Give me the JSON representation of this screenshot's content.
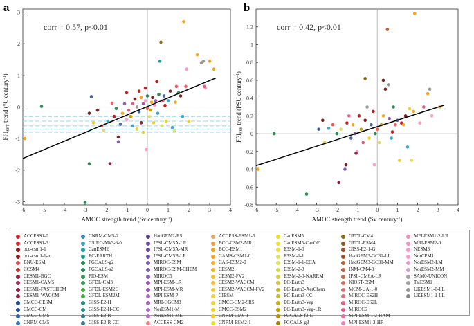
{
  "chart_data": [
    {
      "panel_label": "a",
      "type": "scatter",
      "annotation": "corr = 0.57, p<0.01",
      "xlabel": "AMOC strength trend (Sv century",
      "ylabel": "trend (°C century",
      "ylabel_sub": "SST",
      "xlim": [
        -6,
        4
      ],
      "ylim": [
        -3.1,
        3.1
      ],
      "xticks": [
        "-6",
        "-5",
        "-4",
        "-3",
        "-2",
        "-1",
        "0",
        "1",
        "2",
        "3",
        "4"
      ],
      "yticks": [
        "-3",
        "-2",
        "-1",
        "0",
        "1",
        "2",
        "3"
      ],
      "fit_line": [
        [
          -6,
          -1.63
        ],
        [
          3.3,
          0.92
        ]
      ],
      "bands": [
        -0.3,
        -0.45,
        -0.6,
        -0.7,
        -0.8
      ],
      "points": [
        [
          -5.9,
          -1.0,
          "#f5a623"
        ],
        [
          -5.1,
          0.02,
          "#2e8b57"
        ],
        [
          -3.0,
          -3.02,
          "#2e8b57"
        ],
        [
          -2.8,
          -1.8,
          "#2e8b57"
        ],
        [
          -2.7,
          0.33,
          "#4466aa"
        ],
        [
          -2.8,
          -0.2,
          "#7a2020"
        ],
        [
          -2.6,
          -0.5,
          "#f0d020"
        ],
        [
          -2.4,
          -0.1,
          "#7a2020"
        ],
        [
          -2.2,
          -0.6,
          "#f06060"
        ],
        [
          -2.1,
          -0.75,
          "#e0e060"
        ],
        [
          -1.9,
          -0.45,
          "#3aa7d0"
        ],
        [
          -1.8,
          -1.8,
          "#8b2244"
        ],
        [
          -1.7,
          0.12,
          "#f06060"
        ],
        [
          -1.6,
          -0.3,
          "#c02020"
        ],
        [
          -1.5,
          -0.05,
          "#2e8b57"
        ],
        [
          -1.4,
          -1.1,
          "#8060b0"
        ],
        [
          -1.4,
          -0.95,
          "#7a2020"
        ],
        [
          -1.3,
          -0.55,
          "#4466aa"
        ],
        [
          -1.2,
          -0.2,
          "#f5a623"
        ],
        [
          -1.1,
          0.1,
          "#9b59b6"
        ],
        [
          -1.0,
          -0.4,
          "#ff99cc"
        ],
        [
          -1.0,
          0.45,
          "#c02020"
        ],
        [
          -0.9,
          -0.1,
          "#e06080"
        ],
        [
          -0.8,
          -0.3,
          "#c8a000"
        ],
        [
          -0.7,
          0.1,
          "#e06080"
        ],
        [
          -0.7,
          -0.6,
          "#3aa7d0"
        ],
        [
          -0.6,
          0.25,
          "#7a2020"
        ],
        [
          -0.5,
          0.0,
          "#999999"
        ],
        [
          -0.5,
          -0.7,
          "#f0d020"
        ],
        [
          -0.4,
          0.5,
          "#c02020"
        ],
        [
          -0.4,
          -0.15,
          "#4466aa"
        ],
        [
          -0.3,
          0.3,
          "#f5a623"
        ],
        [
          -0.3,
          -0.5,
          "#8b2244"
        ],
        [
          -0.2,
          0.1,
          "#9b59b6"
        ],
        [
          -0.2,
          -0.8,
          "#f0d020"
        ],
        [
          -0.1,
          0.2,
          "#ff99cc"
        ],
        [
          -0.1,
          0.6,
          "#c02020"
        ],
        [
          -0.05,
          -1.35,
          "#ff99cc"
        ],
        [
          0.0,
          -0.05,
          "#f06060"
        ],
        [
          0.0,
          0.35,
          "#2e8b57"
        ],
        [
          0.1,
          -0.3,
          "#e0e060"
        ],
        [
          0.15,
          -0.1,
          "#c8a000"
        ],
        [
          0.2,
          0.15,
          "#f5a623"
        ],
        [
          0.25,
          0.3,
          "#7a2020"
        ],
        [
          0.3,
          -0.5,
          "#f0d020"
        ],
        [
          0.35,
          0.05,
          "#ff99cc"
        ],
        [
          0.4,
          0.2,
          "#9b59b6"
        ],
        [
          0.45,
          0.8,
          "#c02020"
        ],
        [
          0.5,
          -0.2,
          "#3aa7d0"
        ],
        [
          0.55,
          0.4,
          "#2e8b57"
        ],
        [
          0.6,
          1.45,
          "#20a0a0"
        ],
        [
          0.65,
          2.05,
          "#8b6914"
        ],
        [
          0.7,
          -0.6,
          "#e0e060"
        ],
        [
          0.75,
          0.2,
          "#f06060"
        ],
        [
          0.8,
          0.35,
          "#4466aa"
        ],
        [
          0.85,
          0.05,
          "#c02020"
        ],
        [
          0.9,
          -0.45,
          "#f0d020"
        ],
        [
          1.0,
          0.2,
          "#3aa7d0"
        ],
        [
          1.1,
          0.5,
          "#7a2020"
        ],
        [
          1.2,
          -0.65,
          "#3aa7d0"
        ],
        [
          1.3,
          -0.75,
          "#e0e060"
        ],
        [
          1.35,
          0.15,
          "#f5a623"
        ],
        [
          1.4,
          0.65,
          "#f06060"
        ],
        [
          1.5,
          0.45,
          "#2e8b57"
        ],
        [
          1.6,
          0.35,
          "#7a2020"
        ],
        [
          1.7,
          -0.3,
          "#3aa7d0"
        ],
        [
          1.75,
          2.7,
          "#f5a623"
        ],
        [
          1.9,
          1.2,
          "#ff99cc"
        ],
        [
          2.0,
          -0.45,
          "#f0d020"
        ],
        [
          2.4,
          1.65,
          "#f5a623"
        ],
        [
          2.6,
          1.4,
          "#999999"
        ],
        [
          2.7,
          1.45,
          "#999999"
        ],
        [
          2.8,
          0.6,
          "#ff99cc"
        ],
        [
          3.0,
          1.45,
          "#f5a623"
        ],
        [
          3.2,
          1.2,
          "#f5a623"
        ],
        [
          2.75,
          0.65,
          "#e06080"
        ],
        [
          1.85,
          0.65,
          "#f06060"
        ]
      ]
    },
    {
      "panel_label": "b",
      "type": "scatter",
      "annotation": "corr = 0.42, p<0.01",
      "xlabel": "AMOC strength trend (Sv century",
      "ylabel": "trend (PSU century",
      "ylabel_sub": "SSS",
      "xlim": [
        -6,
        4
      ],
      "ylim": [
        -0.8,
        1.4
      ],
      "xticks": [
        "-6",
        "-5",
        "-4",
        "-3",
        "-2",
        "-1",
        "0",
        "1",
        "2",
        "3",
        "4"
      ],
      "yticks": [
        "-0.8",
        "-0.6",
        "-0.4",
        "-0.2",
        "0",
        "0.2",
        "0.4",
        "0.6",
        "0.8",
        "1",
        "1.2"
      ],
      "fit_line": [
        [
          -6,
          -0.36
        ],
        [
          3.3,
          0.32
        ]
      ],
      "bands": [],
      "points": [
        [
          -5.9,
          -0.4,
          "#f5a623"
        ],
        [
          -5.1,
          0.0,
          "#2e8b57"
        ],
        [
          -3.5,
          -0.68,
          "#2e8b57"
        ],
        [
          -2.9,
          0.05,
          "#4466aa"
        ],
        [
          -2.7,
          0.15,
          "#7a2020"
        ],
        [
          -2.6,
          -0.1,
          "#f0d020"
        ],
        [
          -2.4,
          0.06,
          "#3aa7d0"
        ],
        [
          -2.2,
          0.1,
          "#f06060"
        ],
        [
          -2.0,
          0.0,
          "#2e8b57"
        ],
        [
          -1.9,
          -0.55,
          "#8b2244"
        ],
        [
          -1.8,
          0.05,
          "#e0e060"
        ],
        [
          -1.6,
          -0.4,
          "#8060b0"
        ],
        [
          -1.55,
          -0.35,
          "#7a2020"
        ],
        [
          -1.5,
          0.12,
          "#c02020"
        ],
        [
          -1.4,
          0.2,
          "#e06080"
        ],
        [
          -1.3,
          -0.05,
          "#4466aa"
        ],
        [
          -1.2,
          0.1,
          "#f5a623"
        ],
        [
          -1.1,
          0.0,
          "#9b59b6"
        ],
        [
          -1.0,
          -0.2,
          "#ff99cc"
        ],
        [
          -0.9,
          0.2,
          "#c02020"
        ],
        [
          -0.8,
          0.05,
          "#c8a000"
        ],
        [
          -0.7,
          -0.1,
          "#e06080"
        ],
        [
          -0.6,
          0.15,
          "#7a2020"
        ],
        [
          -0.5,
          0.3,
          "#999999"
        ],
        [
          -0.4,
          -0.05,
          "#f0d020"
        ],
        [
          -0.3,
          0.1,
          "#4466aa"
        ],
        [
          -0.2,
          0.25,
          "#c02020"
        ],
        [
          -0.15,
          -0.35,
          "#ff99cc"
        ],
        [
          -0.1,
          0.0,
          "#2e8b57"
        ],
        [
          0.0,
          0.05,
          "#f06060"
        ],
        [
          0.1,
          -0.1,
          "#e0e060"
        ],
        [
          0.2,
          0.1,
          "#c8a000"
        ],
        [
          0.3,
          0.2,
          "#f5a623"
        ],
        [
          0.4,
          0.5,
          "#7a2020"
        ],
        [
          0.5,
          1.17,
          "#c0603a"
        ],
        [
          0.55,
          0.55,
          "#999999"
        ],
        [
          0.6,
          0.17,
          "#9b59b6"
        ],
        [
          0.7,
          -0.05,
          "#3aa7d0"
        ],
        [
          0.8,
          0.3,
          "#2e8b57"
        ],
        [
          0.9,
          0.1,
          "#f06060"
        ],
        [
          1.0,
          0.15,
          "#4466aa"
        ],
        [
          1.1,
          -0.3,
          "#f0d020"
        ],
        [
          1.2,
          0.12,
          "#c02020"
        ],
        [
          1.3,
          0.1,
          "#f5a623"
        ],
        [
          1.4,
          0.2,
          "#7a2020"
        ],
        [
          1.5,
          -0.15,
          "#3aa7d0"
        ],
        [
          1.6,
          0.28,
          "#f0d020"
        ],
        [
          1.7,
          -0.3,
          "#e0e060"
        ],
        [
          1.8,
          0.25,
          "#f5a623"
        ],
        [
          1.85,
          1.35,
          "#f5a623"
        ],
        [
          2.1,
          0.12,
          "#ff99cc"
        ],
        [
          2.3,
          0.3,
          "#e06080"
        ],
        [
          2.5,
          0.45,
          "#f5a623"
        ],
        [
          2.6,
          0.5,
          "#999999"
        ],
        [
          2.7,
          0.2,
          "#ff99cc"
        ],
        [
          3.1,
          0.3,
          "#f5a623"
        ],
        [
          0.3,
          0.6,
          "#7a2020"
        ],
        [
          -0.6,
          0.62,
          "#8b6914"
        ],
        [
          0.75,
          0.02,
          "#c02020"
        ],
        [
          -1.05,
          -0.22,
          "#8b2244"
        ]
      ]
    }
  ],
  "legend": {
    "columns": [
      [
        {
          "label": "ACCESS1-0",
          "color": "#d62728"
        },
        {
          "label": "ACCESS1-3",
          "color": "#d62728"
        },
        {
          "label": "bcc-csm1-1",
          "color": "#8b1a1a"
        },
        {
          "label": "bcc-csm1-1-m",
          "color": "#8b1a1a"
        },
        {
          "label": "BNU-ESM",
          "color": "#e05050"
        },
        {
          "label": "CCSM4",
          "color": "#c0392b"
        },
        {
          "label": "CESM1-BGC",
          "color": "#8b2244"
        },
        {
          "label": "CESM1-CAM5",
          "color": "#a0305a"
        },
        {
          "label": "CESM1-FASTCHEM",
          "color": "#8b2244"
        },
        {
          "label": "CESM1-WACCM",
          "color": "#8b2244"
        },
        {
          "label": "CMCC-CESM",
          "color": "#1f4e9a"
        },
        {
          "label": "CMCC-CM",
          "color": "#1f4e9a"
        },
        {
          "label": "CMCC-CMS",
          "color": "#2b5eb0"
        },
        {
          "label": "CNRM-CM5",
          "color": "#2b7ac0"
        }
      ],
      [
        {
          "label": "CNRM-CM5-2",
          "color": "#3a8fc0"
        },
        {
          "label": "CSIRO-Mk3-6-0",
          "color": "#3aa0c0"
        },
        {
          "label": "CanESM2",
          "color": "#20a0a0"
        },
        {
          "label": "EC-EARTH",
          "color": "#20a090"
        },
        {
          "label": "FGOALS-g2",
          "color": "#2e8b57"
        },
        {
          "label": "FGOALS-s2",
          "color": "#2e8b57"
        },
        {
          "label": "FIO-ESM",
          "color": "#3c9c5c"
        },
        {
          "label": "GFDL-CM3",
          "color": "#3c9c5c"
        },
        {
          "label": "GFDL-ESM2G",
          "color": "#48a848"
        },
        {
          "label": "GFDL-ESM2M",
          "color": "#48a848"
        },
        {
          "label": "GISS-E2-H",
          "color": "#2e8b8b"
        },
        {
          "label": "GISS-E2-H-CC",
          "color": "#2e8b8b"
        },
        {
          "label": "GISS-E2-R",
          "color": "#2e7b8b"
        },
        {
          "label": "GISS-E2-R-CC",
          "color": "#2e7b8b"
        }
      ],
      [
        {
          "label": "HadGEM2-ES",
          "color": "#5a3e8a"
        },
        {
          "label": "IPSL-CM5A-LR",
          "color": "#6a4aa0"
        },
        {
          "label": "IPSL-CM5A-MR",
          "color": "#6a4aa0"
        },
        {
          "label": "IPSL-CM5B-LR",
          "color": "#7050b0"
        },
        {
          "label": "MIROC-ESM",
          "color": "#8060b0"
        },
        {
          "label": "MIROC-ESM-CHEM",
          "color": "#8060b0"
        },
        {
          "label": "MIROC5",
          "color": "#9060c0"
        },
        {
          "label": "MPI-ESM-LR",
          "color": "#9b59b6"
        },
        {
          "label": "MPI-ESM-MR",
          "color": "#9b59b6"
        },
        {
          "label": "MPI-ESM-P",
          "color": "#a868c0"
        },
        {
          "label": "MRI-CGCM3",
          "color": "#a868c0"
        },
        {
          "label": "NorESM1-M",
          "color": "#b070c8"
        },
        {
          "label": "NorESM1-ME",
          "color": "#b070c8"
        },
        {
          "label": "ACCESS-CM2",
          "color": "#f08080"
        }
      ],
      [
        {
          "label": "ACCESS-ESM1-5",
          "color": "#f0a060"
        },
        {
          "label": "BCC-CSM2-MR",
          "color": "#f0a040"
        },
        {
          "label": "BCC-ESM1",
          "color": "#f5a623"
        },
        {
          "label": "CAMS-CSM1-0",
          "color": "#f5a623"
        },
        {
          "label": "CAS-ESM2-0",
          "color": "#f5b030"
        },
        {
          "label": "CESM2",
          "color": "#f5b030"
        },
        {
          "label": "CESM2-FV2",
          "color": "#f5c040"
        },
        {
          "label": "CESM2-WACCM",
          "color": "#f5c040"
        },
        {
          "label": "CESM2-WACCM-FV2",
          "color": "#f0c840"
        },
        {
          "label": "CIESM",
          "color": "#f0d040"
        },
        {
          "label": "CMCC-CM2-SR5",
          "color": "#f0d040"
        },
        {
          "label": "CMCC-ESM2",
          "color": "#f0d020"
        },
        {
          "label": "CNRM-CM6-1",
          "color": "#f0d020"
        },
        {
          "label": "CNRM-ESM2-1",
          "color": "#f0e020"
        }
      ],
      [
        {
          "label": "CanESM5",
          "color": "#f0e020"
        },
        {
          "label": "CanESM5-CanOE",
          "color": "#f0e040"
        },
        {
          "label": "E3SM-1-0",
          "color": "#e8e040"
        },
        {
          "label": "E3SM-1-1",
          "color": "#e0e060"
        },
        {
          "label": "E3SM-1-1-ECA",
          "color": "#e0e060"
        },
        {
          "label": "E3SM-2-0",
          "color": "#d8d850"
        },
        {
          "label": "E3SM-2-0-NARRM",
          "color": "#d8d050"
        },
        {
          "label": "EC-Earth3",
          "color": "#d0c840"
        },
        {
          "label": "EC-Earth3-AerChem",
          "color": "#c8b830"
        },
        {
          "label": "EC-Earth3-CC",
          "color": "#c8b830"
        },
        {
          "label": "EC-Earth3-Veg",
          "color": "#c8a820"
        },
        {
          "label": "EC-Earth3-Veg-LR",
          "color": "#c8a000"
        },
        {
          "label": "FGOALS-f3-L",
          "color": "#b89000"
        },
        {
          "label": "FGOALS-g3",
          "color": "#a88000"
        }
      ],
      [
        {
          "label": "GFDL-CM4",
          "color": "#8b6914"
        },
        {
          "label": "GFDL-ESM4",
          "color": "#8b5a14"
        },
        {
          "label": "GISS-E2-1-G",
          "color": "#a0522d"
        },
        {
          "label": "HadGEM3-GC31-LL",
          "color": "#a0522d"
        },
        {
          "label": "HadGEM3-GC31-MM",
          "color": "#b0603a"
        },
        {
          "label": "INM-CM4-8",
          "color": "#b86040"
        },
        {
          "label": "IPSL-CM6A-LR",
          "color": "#c07050"
        },
        {
          "label": "KIOST-ESM",
          "color": "#c87060"
        },
        {
          "label": "MCM-UA-1-0",
          "color": "#d07070"
        },
        {
          "label": "MIROC-ES2H",
          "color": "#d87080"
        },
        {
          "label": "MIROC-ES2L",
          "color": "#e06080"
        },
        {
          "label": "MIROC6",
          "color": "#e06080"
        },
        {
          "label": "MPI-ESM-1-2-HAM",
          "color": "#e870a0"
        },
        {
          "label": "MPI-ESM1-2-HR",
          "color": "#f080b0"
        }
      ],
      [
        {
          "label": "MPI-ESM1-2-LR",
          "color": "#f090b8"
        },
        {
          "label": "MRI-ESM2-0",
          "color": "#f090c0"
        },
        {
          "label": "NESM3",
          "color": "#ff99cc"
        },
        {
          "label": "NorCPM1",
          "color": "#ff99cc"
        },
        {
          "label": "NorESM2-LM",
          "color": "#e8a0d0"
        },
        {
          "label": "NorESM2-MM",
          "color": "#d0a0d0"
        },
        {
          "label": "SAM0-UNICON",
          "color": "#b0a0b0"
        },
        {
          "label": "TaiESM1",
          "color": "#a0a0a0"
        },
        {
          "label": "UKESM1-0-LL",
          "color": "#999999"
        },
        {
          "label": "UKESM1-1-LL",
          "color": "#888888"
        }
      ]
    ]
  }
}
